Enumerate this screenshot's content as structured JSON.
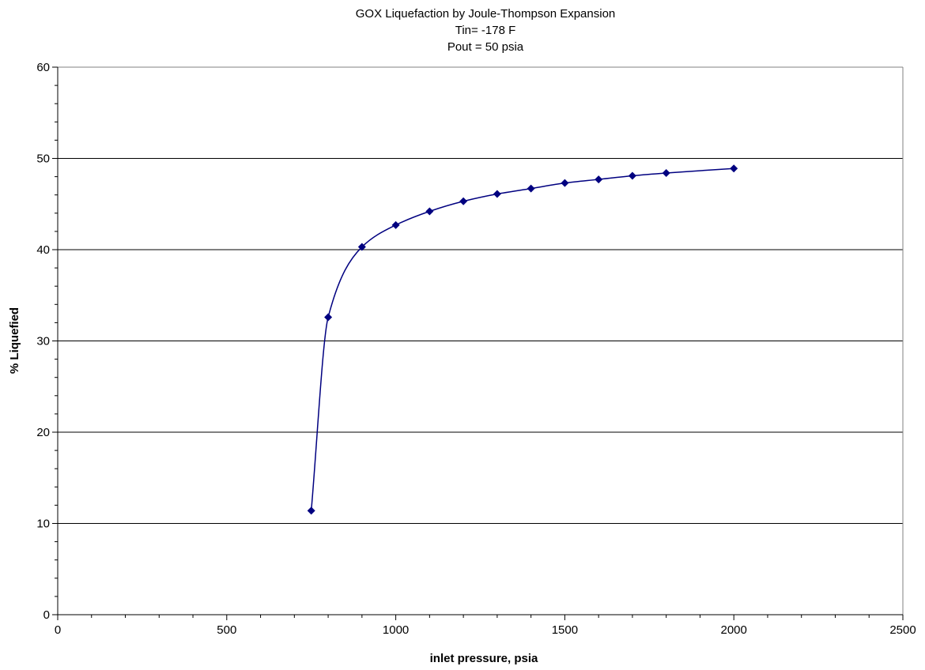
{
  "chart_data": {
    "type": "line",
    "title": [
      "GOX  Liquefaction by Joule-Thompson Expansion",
      "Tin= -178 F",
      "Pout = 50 psia"
    ],
    "xlabel": "inlet pressure, psia",
    "ylabel": "% Liquefied",
    "xlim": [
      0,
      2500
    ],
    "ylim": [
      0,
      60
    ],
    "x_ticks": [
      0,
      500,
      1000,
      1500,
      2000,
      2500
    ],
    "y_ticks": [
      0,
      10,
      20,
      30,
      40,
      50,
      60
    ],
    "grid": "horizontal major",
    "legend": "none",
    "smoothed": true,
    "marker": "diamond",
    "series_color": "#000080",
    "x": [
      750,
      800,
      900,
      1000,
      1100,
      1200,
      1300,
      1400,
      1500,
      1600,
      1700,
      1800,
      2000
    ],
    "y": [
      11.4,
      32.6,
      40.3,
      42.7,
      44.2,
      45.3,
      46.1,
      46.7,
      47.3,
      47.7,
      48.1,
      48.4,
      48.9
    ]
  }
}
